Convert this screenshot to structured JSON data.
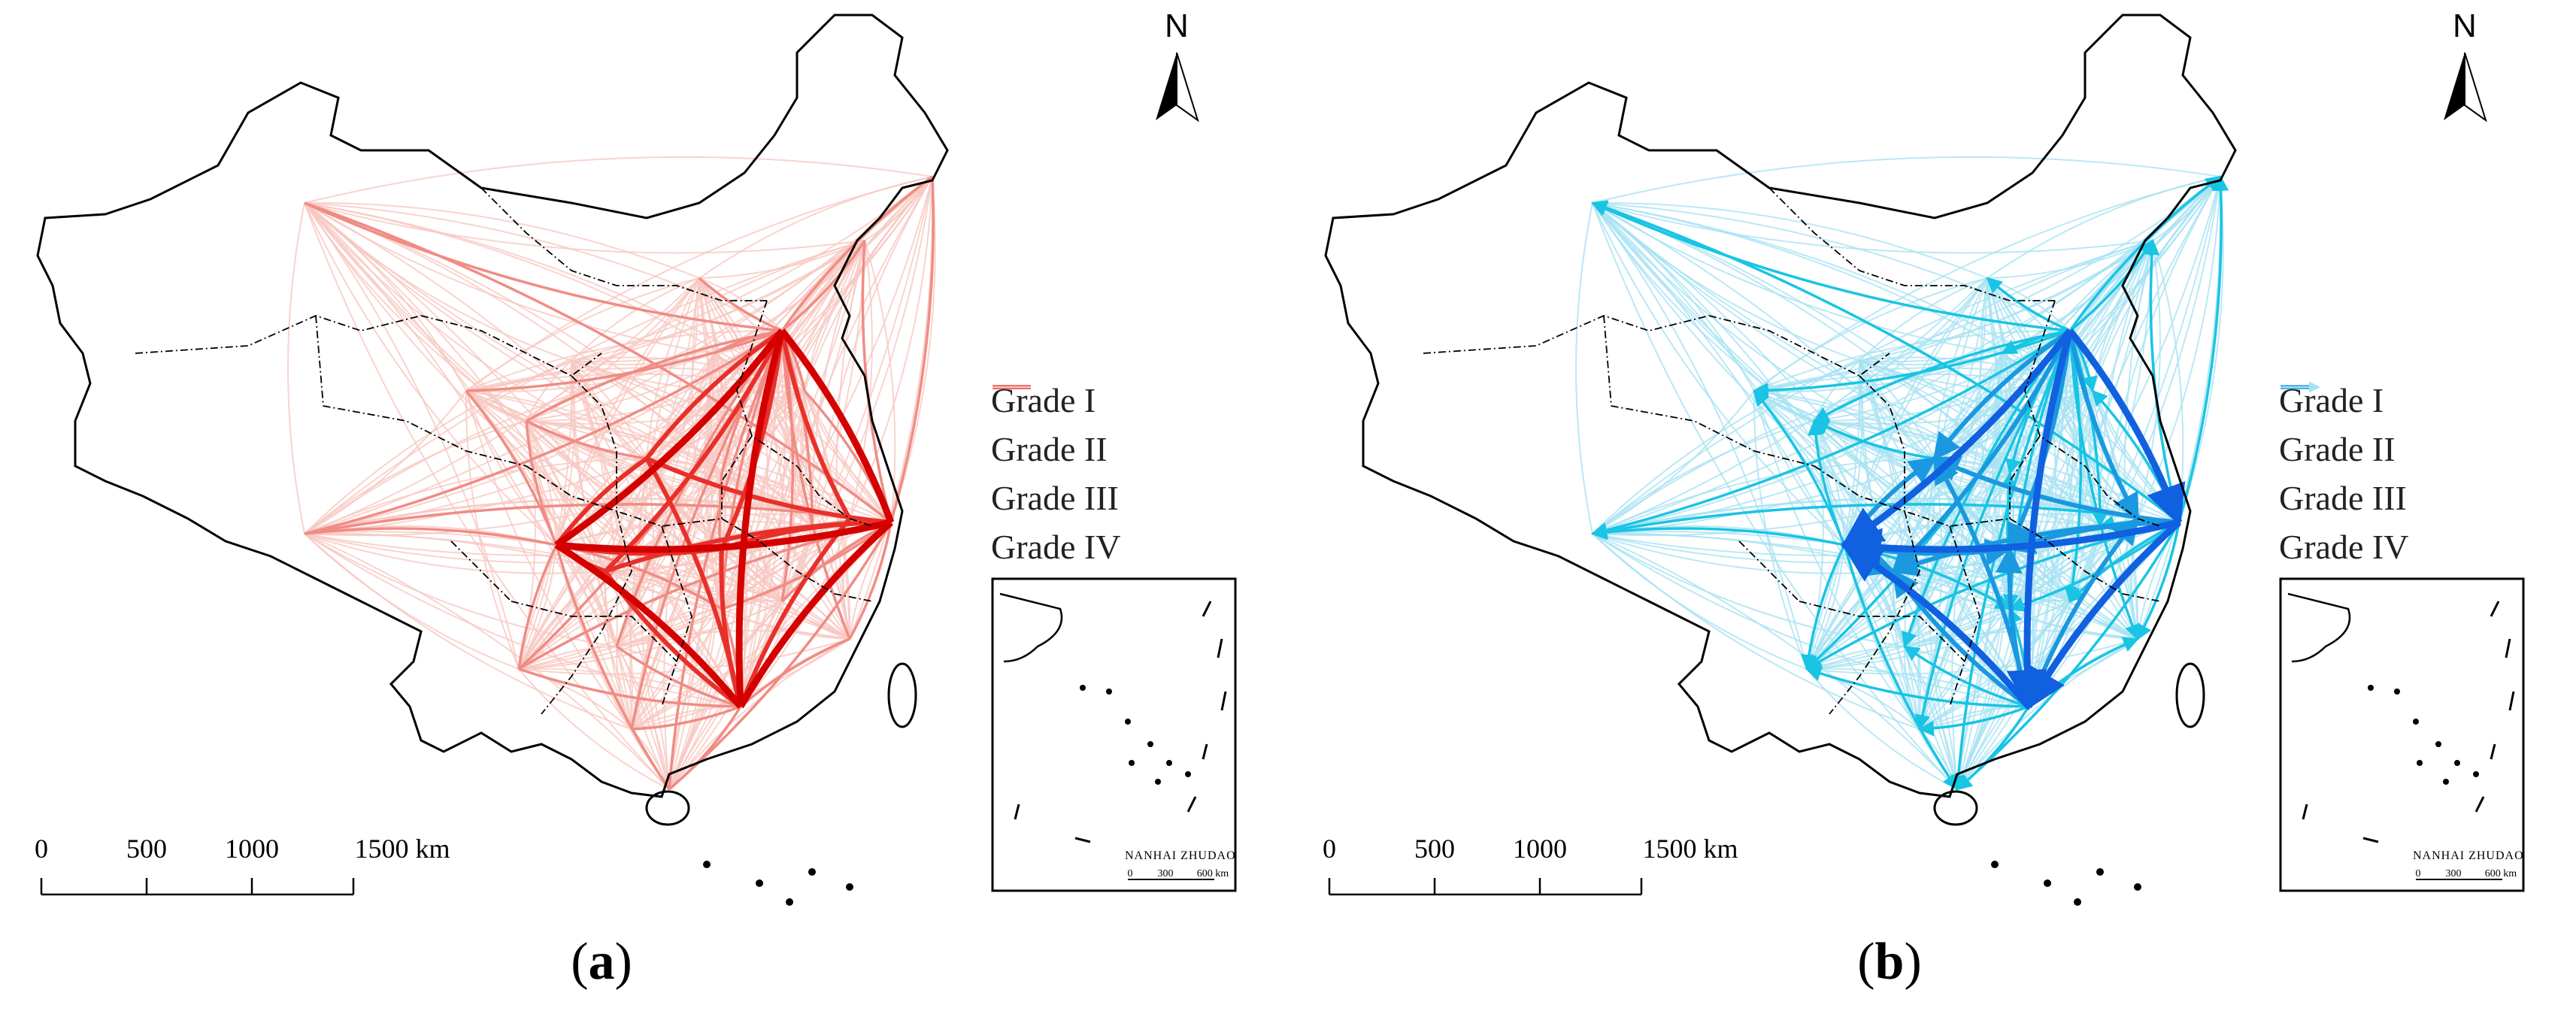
{
  "panels": [
    {
      "id": "a",
      "caption_letter": "a",
      "legend": [
        {
          "label": "Grade I",
          "color": "#d40000",
          "arrow": false
        },
        {
          "label": "Grade II",
          "color": "#e8302a",
          "arrow": false
        },
        {
          "label": "Grade III",
          "color": "#f08c84",
          "arrow": false
        },
        {
          "label": "Grade IV",
          "color": "#f7c8c2",
          "arrow": false
        }
      ]
    },
    {
      "id": "b",
      "caption_letter": "b",
      "legend": [
        {
          "label": "Grade I",
          "color": "#1060e0",
          "arrow": true
        },
        {
          "label": "Grade II",
          "color": "#1a98e0",
          "arrow": true
        },
        {
          "label": "Grade III",
          "color": "#19c4e4",
          "arrow": true
        },
        {
          "label": "Grade IV",
          "color": "#a8e2f2",
          "arrow": true
        }
      ]
    }
  ],
  "north": "N",
  "scale_bar": {
    "labels": [
      "0",
      "500",
      "1000",
      "1500 km"
    ]
  },
  "inset": {
    "title": "NANHAI   ZHUDAO",
    "ticks": [
      "0",
      "300",
      "600 km"
    ]
  }
}
